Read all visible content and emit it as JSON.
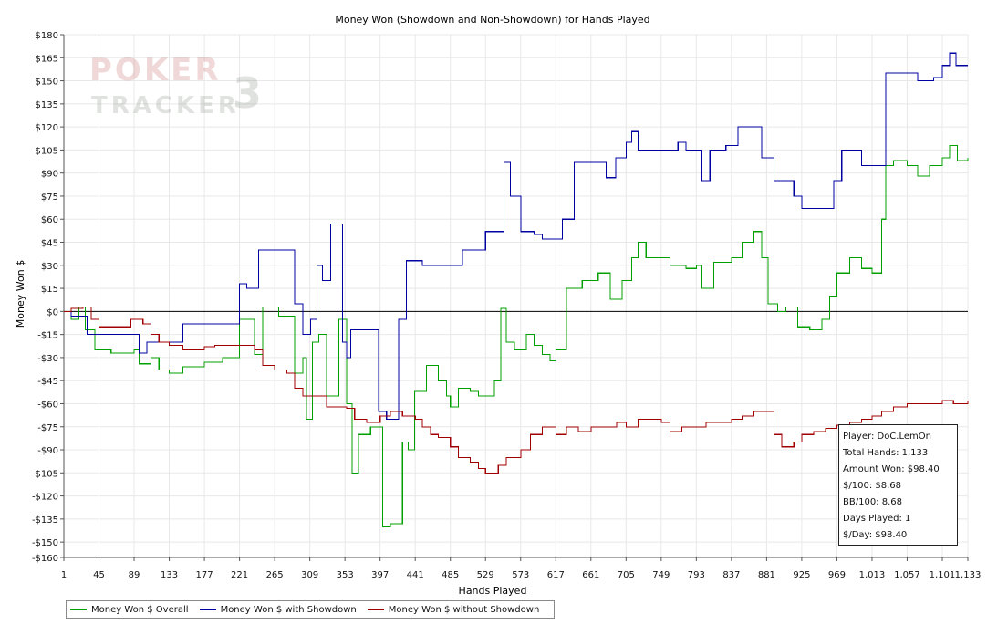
{
  "chart_data": {
    "type": "line",
    "title": "Money Won (Showdown and Non-Showdown) for Hands Played",
    "xlabel": "Hands Played",
    "ylabel": "Money Won $",
    "xlim": [
      1,
      1133
    ],
    "ylim": [
      -160,
      180
    ],
    "xticks": [
      1,
      45,
      89,
      133,
      177,
      221,
      265,
      309,
      353,
      397,
      441,
      485,
      529,
      573,
      617,
      661,
      705,
      749,
      793,
      837,
      881,
      925,
      969,
      1013,
      1057,
      1101,
      1133
    ],
    "xtick_labels": [
      "1",
      "45",
      "89",
      "133",
      "177",
      "221",
      "265",
      "309",
      "353",
      "397",
      "441",
      "485",
      "529",
      "573",
      "617",
      "661",
      "705",
      "749",
      "793",
      "837",
      "881",
      "925",
      "969",
      "1,013",
      "1,057",
      "1,101",
      "1,133"
    ],
    "yticks": [
      -160,
      -150,
      -135,
      -120,
      -105,
      -90,
      -75,
      -60,
      -45,
      -30,
      -15,
      0,
      15,
      30,
      45,
      60,
      75,
      90,
      105,
      120,
      135,
      150,
      165,
      180
    ],
    "ytick_labels": [
      "-$160",
      "-$150",
      "-$135",
      "-$120",
      "-$105",
      "-$90",
      "-$75",
      "-$60",
      "-$45",
      "-$30",
      "-$15",
      "$0",
      "$15",
      "$30",
      "$45",
      "$60",
      "$75",
      "$90",
      "$105",
      "$120",
      "$135",
      "$150",
      "$165",
      "$180"
    ],
    "grid": true,
    "legend_position": "bottom-left",
    "series": [
      {
        "name": "Money Won $ Overall",
        "color": "#00a000",
        "points": [
          [
            1,
            0
          ],
          [
            10,
            -5
          ],
          [
            20,
            3
          ],
          [
            28,
            -12
          ],
          [
            40,
            -25
          ],
          [
            60,
            -27
          ],
          [
            89,
            -25
          ],
          [
            95,
            -34
          ],
          [
            110,
            -30
          ],
          [
            120,
            -38
          ],
          [
            133,
            -40
          ],
          [
            150,
            -36
          ],
          [
            177,
            -33
          ],
          [
            200,
            -30
          ],
          [
            221,
            -5
          ],
          [
            240,
            -28
          ],
          [
            250,
            3
          ],
          [
            270,
            -3
          ],
          [
            290,
            -40
          ],
          [
            300,
            -30
          ],
          [
            305,
            -70
          ],
          [
            312,
            -20
          ],
          [
            320,
            -15
          ],
          [
            330,
            -55
          ],
          [
            345,
            -5
          ],
          [
            355,
            -60
          ],
          [
            362,
            -105
          ],
          [
            370,
            -80
          ],
          [
            385,
            -75
          ],
          [
            400,
            -140
          ],
          [
            410,
            -138
          ],
          [
            425,
            -85
          ],
          [
            432,
            -90
          ],
          [
            440,
            -52
          ],
          [
            455,
            -35
          ],
          [
            470,
            -45
          ],
          [
            480,
            -55
          ],
          [
            485,
            -62
          ],
          [
            495,
            -50
          ],
          [
            510,
            -52
          ],
          [
            520,
            -55
          ],
          [
            529,
            -55
          ],
          [
            540,
            -45
          ],
          [
            548,
            2
          ],
          [
            555,
            -20
          ],
          [
            565,
            -25
          ],
          [
            580,
            -15
          ],
          [
            590,
            -22
          ],
          [
            600,
            -28
          ],
          [
            610,
            -32
          ],
          [
            617,
            -25
          ],
          [
            630,
            15
          ],
          [
            650,
            20
          ],
          [
            670,
            25
          ],
          [
            685,
            8
          ],
          [
            700,
            20
          ],
          [
            712,
            35
          ],
          [
            720,
            45
          ],
          [
            730,
            35
          ],
          [
            749,
            35
          ],
          [
            760,
            30
          ],
          [
            780,
            28
          ],
          [
            793,
            30
          ],
          [
            800,
            15
          ],
          [
            815,
            32
          ],
          [
            837,
            35
          ],
          [
            850,
            45
          ],
          [
            865,
            52
          ],
          [
            875,
            35
          ],
          [
            883,
            5
          ],
          [
            895,
            0
          ],
          [
            905,
            3
          ],
          [
            920,
            -10
          ],
          [
            935,
            -12
          ],
          [
            950,
            -5
          ],
          [
            960,
            10
          ],
          [
            969,
            25
          ],
          [
            985,
            35
          ],
          [
            1000,
            28
          ],
          [
            1013,
            25
          ],
          [
            1025,
            60
          ],
          [
            1030,
            95
          ],
          [
            1040,
            98
          ],
          [
            1057,
            95
          ],
          [
            1070,
            88
          ],
          [
            1085,
            95
          ],
          [
            1101,
            100
          ],
          [
            1110,
            108
          ],
          [
            1120,
            98
          ],
          [
            1133,
            100
          ]
        ]
      },
      {
        "name": "Money Won $ with Showdown",
        "color": "#0000a0",
        "points": [
          [
            1,
            0
          ],
          [
            10,
            -3
          ],
          [
            30,
            -15
          ],
          [
            60,
            -15
          ],
          [
            89,
            -15
          ],
          [
            95,
            -27
          ],
          [
            105,
            -20
          ],
          [
            140,
            -20
          ],
          [
            150,
            -8
          ],
          [
            200,
            -8
          ],
          [
            221,
            18
          ],
          [
            230,
            15
          ],
          [
            245,
            40
          ],
          [
            265,
            40
          ],
          [
            280,
            40
          ],
          [
            290,
            5
          ],
          [
            300,
            -15
          ],
          [
            310,
            -5
          ],
          [
            318,
            30
          ],
          [
            325,
            20
          ],
          [
            335,
            57
          ],
          [
            345,
            57
          ],
          [
            350,
            -20
          ],
          [
            355,
            -30
          ],
          [
            360,
            -12
          ],
          [
            390,
            -12
          ],
          [
            395,
            -65
          ],
          [
            405,
            -70
          ],
          [
            420,
            -5
          ],
          [
            430,
            33
          ],
          [
            450,
            30
          ],
          [
            485,
            30
          ],
          [
            500,
            40
          ],
          [
            529,
            52
          ],
          [
            545,
            52
          ],
          [
            552,
            97
          ],
          [
            560,
            75
          ],
          [
            573,
            52
          ],
          [
            590,
            50
          ],
          [
            600,
            47
          ],
          [
            617,
            47
          ],
          [
            625,
            60
          ],
          [
            640,
            97
          ],
          [
            661,
            97
          ],
          [
            680,
            87
          ],
          [
            692,
            100
          ],
          [
            705,
            110
          ],
          [
            712,
            117
          ],
          [
            720,
            105
          ],
          [
            749,
            105
          ],
          [
            765,
            105
          ],
          [
            770,
            110
          ],
          [
            780,
            105
          ],
          [
            793,
            105
          ],
          [
            800,
            85
          ],
          [
            810,
            105
          ],
          [
            830,
            108
          ],
          [
            845,
            120
          ],
          [
            860,
            120
          ],
          [
            875,
            100
          ],
          [
            890,
            85
          ],
          [
            905,
            85
          ],
          [
            915,
            75
          ],
          [
            925,
            67
          ],
          [
            940,
            67
          ],
          [
            955,
            67
          ],
          [
            965,
            85
          ],
          [
            975,
            105
          ],
          [
            990,
            105
          ],
          [
            1000,
            95
          ],
          [
            1013,
            95
          ],
          [
            1025,
            95
          ],
          [
            1030,
            155
          ],
          [
            1050,
            155
          ],
          [
            1057,
            155
          ],
          [
            1070,
            150
          ],
          [
            1090,
            152
          ],
          [
            1101,
            160
          ],
          [
            1110,
            168
          ],
          [
            1118,
            160
          ],
          [
            1133,
            160
          ]
        ]
      },
      {
        "name": "Money Won $ without Showdown",
        "color": "#a00000",
        "points": [
          [
            1,
            0
          ],
          [
            10,
            2
          ],
          [
            25,
            3
          ],
          [
            35,
            -5
          ],
          [
            45,
            -10
          ],
          [
            70,
            -10
          ],
          [
            85,
            -5
          ],
          [
            89,
            -5
          ],
          [
            100,
            -8
          ],
          [
            110,
            -15
          ],
          [
            120,
            -20
          ],
          [
            133,
            -22
          ],
          [
            150,
            -25
          ],
          [
            177,
            -23
          ],
          [
            190,
            -22
          ],
          [
            200,
            -22
          ],
          [
            221,
            -22
          ],
          [
            240,
            -25
          ],
          [
            250,
            -35
          ],
          [
            265,
            -38
          ],
          [
            280,
            -40
          ],
          [
            290,
            -50
          ],
          [
            300,
            -55
          ],
          [
            315,
            -55
          ],
          [
            330,
            -62
          ],
          [
            345,
            -62
          ],
          [
            355,
            -63
          ],
          [
            365,
            -70
          ],
          [
            380,
            -72
          ],
          [
            397,
            -68
          ],
          [
            410,
            -65
          ],
          [
            425,
            -68
          ],
          [
            441,
            -70
          ],
          [
            450,
            -75
          ],
          [
            460,
            -80
          ],
          [
            470,
            -82
          ],
          [
            485,
            -88
          ],
          [
            495,
            -95
          ],
          [
            510,
            -98
          ],
          [
            520,
            -102
          ],
          [
            529,
            -105
          ],
          [
            545,
            -100
          ],
          [
            555,
            -95
          ],
          [
            573,
            -90
          ],
          [
            585,
            -80
          ],
          [
            600,
            -75
          ],
          [
            617,
            -80
          ],
          [
            630,
            -75
          ],
          [
            645,
            -78
          ],
          [
            661,
            -75
          ],
          [
            680,
            -75
          ],
          [
            693,
            -72
          ],
          [
            705,
            -75
          ],
          [
            720,
            -70
          ],
          [
            749,
            -72
          ],
          [
            760,
            -78
          ],
          [
            775,
            -75
          ],
          [
            790,
            -75
          ],
          [
            805,
            -72
          ],
          [
            837,
            -70
          ],
          [
            850,
            -68
          ],
          [
            865,
            -65
          ],
          [
            881,
            -65
          ],
          [
            890,
            -80
          ],
          [
            900,
            -88
          ],
          [
            915,
            -85
          ],
          [
            925,
            -80
          ],
          [
            940,
            -78
          ],
          [
            955,
            -76
          ],
          [
            969,
            -74
          ],
          [
            985,
            -72
          ],
          [
            1000,
            -70
          ],
          [
            1013,
            -68
          ],
          [
            1025,
            -65
          ],
          [
            1040,
            -62
          ],
          [
            1057,
            -60
          ],
          [
            1070,
            -60
          ],
          [
            1085,
            -60
          ],
          [
            1101,
            -58
          ],
          [
            1115,
            -60
          ],
          [
            1133,
            -58
          ]
        ]
      }
    ]
  },
  "info": {
    "player": "Player: DoC.LemOn",
    "total_hands": "Total Hands: 1,133",
    "amount_won": "Amount Won: $98.40",
    "per100": "$/100: $8.68",
    "bb100": "BB/100: 8.68",
    "days_played": "Days Played: 1",
    "per_day": "$/Day: $98.40"
  },
  "legend": {
    "overall": "Money Won $ Overall",
    "with_showdown": "Money Won $ with Showdown",
    "without_showdown": "Money Won $ without Showdown",
    "overall_color": "#00a000",
    "with_showdown_color": "#0000a0",
    "without_showdown_color": "#a00000"
  },
  "watermark": {
    "line1": "POKER",
    "line2": "TRACKER",
    "version": "3"
  }
}
